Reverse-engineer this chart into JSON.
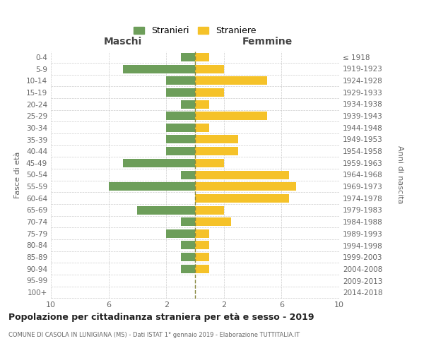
{
  "age_groups": [
    "0-4",
    "5-9",
    "10-14",
    "15-19",
    "20-24",
    "25-29",
    "30-34",
    "35-39",
    "40-44",
    "45-49",
    "50-54",
    "55-59",
    "60-64",
    "65-69",
    "70-74",
    "75-79",
    "80-84",
    "85-89",
    "90-94",
    "95-99",
    "100+"
  ],
  "birth_years": [
    "2014-2018",
    "2009-2013",
    "2004-2008",
    "1999-2003",
    "1994-1998",
    "1989-1993",
    "1984-1988",
    "1979-1983",
    "1974-1978",
    "1969-1973",
    "1964-1968",
    "1959-1963",
    "1954-1958",
    "1949-1953",
    "1944-1948",
    "1939-1943",
    "1934-1938",
    "1929-1933",
    "1924-1928",
    "1919-1923",
    "≤ 1918"
  ],
  "maschi": [
    1,
    5,
    2,
    2,
    1,
    2,
    2,
    2,
    2,
    5,
    1,
    6,
    0,
    4,
    1,
    2,
    1,
    1,
    1,
    0,
    0
  ],
  "femmine": [
    1,
    2,
    5,
    2,
    1,
    5,
    1,
    3,
    3,
    2,
    6.5,
    7,
    6.5,
    2,
    2.5,
    1,
    1,
    1,
    1,
    0,
    0
  ],
  "male_color": "#6d9e5a",
  "female_color": "#f5c229",
  "center_line_color": "#888840",
  "title": "Popolazione per cittadinanza straniera per età e sesso - 2019",
  "subtitle": "COMUNE DI CASOLA IN LUNIGIANA (MS) - Dati ISTAT 1° gennaio 2019 - Elaborazione TUTTITALIA.IT",
  "ylabel_left": "Fasce di età",
  "ylabel_right": "Anni di nascita",
  "xlabel_left": "Maschi",
  "xlabel_right": "Femmine",
  "legend_male": "Stranieri",
  "legend_female": "Straniere",
  "xlim": 10,
  "background_color": "#ffffff",
  "grid_color": "#cccccc"
}
